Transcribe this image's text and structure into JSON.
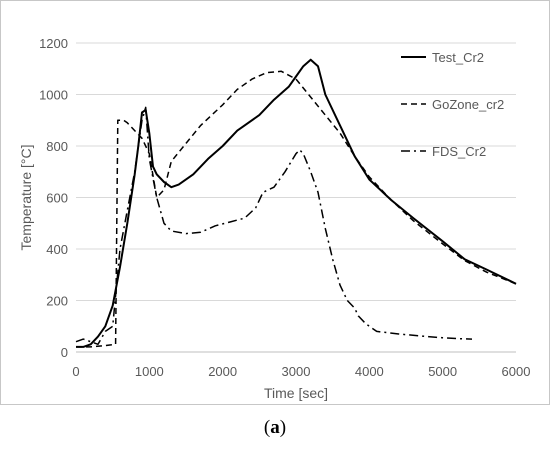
{
  "chart_data": {
    "type": "line",
    "xlabel": "Time [sec]",
    "ylabel": "Temperature [°C]",
    "xlim": [
      0,
      6000
    ],
    "ylim": [
      0,
      1200
    ],
    "xticks": [
      0,
      1000,
      2000,
      3000,
      4000,
      5000,
      6000
    ],
    "yticks": [
      0,
      200,
      400,
      600,
      800,
      1000,
      1200
    ],
    "grid": "horizontal",
    "legend_position": "right",
    "series": [
      {
        "name": "Test_Cr2",
        "style": "solid",
        "color": "#000000",
        "points": [
          [
            0,
            20
          ],
          [
            100,
            20
          ],
          [
            200,
            30
          ],
          [
            300,
            60
          ],
          [
            400,
            100
          ],
          [
            500,
            180
          ],
          [
            600,
            330
          ],
          [
            700,
            500
          ],
          [
            800,
            690
          ],
          [
            850,
            800
          ],
          [
            900,
            930
          ],
          [
            950,
            940
          ],
          [
            1000,
            850
          ],
          [
            1050,
            720
          ],
          [
            1100,
            690
          ],
          [
            1200,
            660
          ],
          [
            1300,
            640
          ],
          [
            1400,
            650
          ],
          [
            1600,
            690
          ],
          [
            1800,
            750
          ],
          [
            2000,
            800
          ],
          [
            2200,
            860
          ],
          [
            2500,
            920
          ],
          [
            2700,
            980
          ],
          [
            2900,
            1030
          ],
          [
            3000,
            1070
          ],
          [
            3100,
            1110
          ],
          [
            3200,
            1135
          ],
          [
            3300,
            1110
          ],
          [
            3400,
            1000
          ],
          [
            3600,
            880
          ],
          [
            3800,
            760
          ],
          [
            4000,
            670
          ],
          [
            4300,
            590
          ],
          [
            4600,
            520
          ],
          [
            5000,
            430
          ],
          [
            5300,
            360
          ],
          [
            5600,
            320
          ],
          [
            6000,
            265
          ]
        ]
      },
      {
        "name": "GoZone_cr2",
        "style": "dashed",
        "color": "#000000",
        "points": [
          [
            0,
            20
          ],
          [
            200,
            20
          ],
          [
            400,
            25
          ],
          [
            540,
            30
          ],
          [
            570,
            900
          ],
          [
            650,
            900
          ],
          [
            700,
            890
          ],
          [
            800,
            860
          ],
          [
            900,
            830
          ],
          [
            1000,
            770
          ],
          [
            1100,
            600
          ],
          [
            1200,
            630
          ],
          [
            1300,
            740
          ],
          [
            1500,
            810
          ],
          [
            1700,
            880
          ],
          [
            2000,
            960
          ],
          [
            2200,
            1020
          ],
          [
            2400,
            1060
          ],
          [
            2600,
            1085
          ],
          [
            2800,
            1090
          ],
          [
            3000,
            1060
          ],
          [
            3200,
            990
          ],
          [
            3400,
            920
          ],
          [
            3600,
            850
          ],
          [
            3800,
            760
          ],
          [
            4000,
            680
          ],
          [
            4300,
            590
          ],
          [
            4600,
            510
          ],
          [
            5000,
            420
          ],
          [
            5300,
            355
          ],
          [
            5600,
            310
          ],
          [
            6000,
            265
          ]
        ]
      },
      {
        "name": "FDS_Cr2",
        "style": "dashdot",
        "color": "#000000",
        "points": [
          [
            0,
            40
          ],
          [
            100,
            50
          ],
          [
            200,
            40
          ],
          [
            300,
            30
          ],
          [
            400,
            80
          ],
          [
            500,
            100
          ],
          [
            600,
            400
          ],
          [
            700,
            550
          ],
          [
            800,
            700
          ],
          [
            900,
            900
          ],
          [
            950,
            950
          ],
          [
            1000,
            750
          ],
          [
            1100,
            600
          ],
          [
            1200,
            500
          ],
          [
            1300,
            470
          ],
          [
            1500,
            460
          ],
          [
            1700,
            465
          ],
          [
            1900,
            490
          ],
          [
            2100,
            505
          ],
          [
            2300,
            520
          ],
          [
            2450,
            560
          ],
          [
            2550,
            620
          ],
          [
            2700,
            640
          ],
          [
            2850,
            700
          ],
          [
            3000,
            770
          ],
          [
            3050,
            785
          ],
          [
            3100,
            770
          ],
          [
            3200,
            700
          ],
          [
            3300,
            620
          ],
          [
            3400,
            480
          ],
          [
            3500,
            360
          ],
          [
            3600,
            260
          ],
          [
            3700,
            200
          ],
          [
            3800,
            170
          ],
          [
            3850,
            140
          ],
          [
            3950,
            110
          ],
          [
            4100,
            80
          ],
          [
            4400,
            70
          ],
          [
            4800,
            60
          ],
          [
            5000,
            55
          ],
          [
            5200,
            52
          ],
          [
            5400,
            50
          ]
        ]
      }
    ]
  },
  "caption": {
    "open": "(",
    "letter": "a",
    "close": ")"
  }
}
